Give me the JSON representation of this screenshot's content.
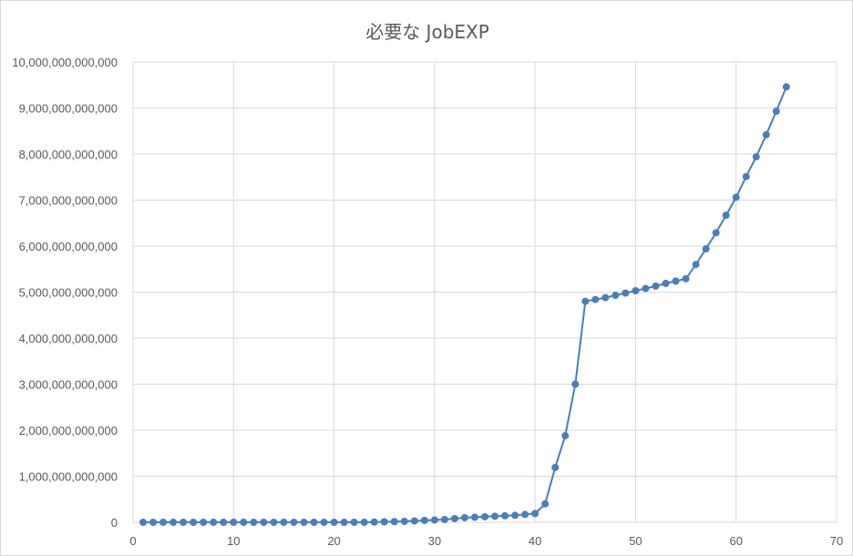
{
  "chart_data": {
    "type": "line",
    "title": "必要な JobEXP",
    "xlabel": "",
    "ylabel": "",
    "xlim": [
      0,
      70
    ],
    "ylim": [
      0,
      10000000000000
    ],
    "x_ticks": [
      0,
      10,
      20,
      30,
      40,
      50,
      60,
      70
    ],
    "y_ticks": [
      0,
      1000000000000,
      2000000000000,
      3000000000000,
      4000000000000,
      5000000000000,
      6000000000000,
      7000000000000,
      8000000000000,
      9000000000000,
      10000000000000
    ],
    "y_tick_labels": [
      "0",
      "1,000,000,000,000",
      "2,000,000,000,000",
      "3,000,000,000,000",
      "4,000,000,000,000",
      "5,000,000,000,000",
      "6,000,000,000,000",
      "7,000,000,000,000",
      "8,000,000,000,000",
      "9,000,000,000,000",
      "10,000,000,000,000"
    ],
    "grid": true,
    "legend": "none",
    "series": [
      {
        "color": "#4a7ebb",
        "x": [
          1,
          2,
          3,
          4,
          5,
          6,
          7,
          8,
          9,
          10,
          11,
          12,
          13,
          14,
          15,
          16,
          17,
          18,
          19,
          20,
          21,
          22,
          23,
          24,
          25,
          26,
          27,
          28,
          29,
          30,
          31,
          32,
          33,
          34,
          35,
          36,
          37,
          38,
          39,
          40,
          41,
          42,
          43,
          44,
          45,
          46,
          47,
          48,
          49,
          50,
          51,
          52,
          53,
          54,
          55,
          56,
          57,
          58,
          59,
          60,
          61,
          62,
          63,
          64,
          65
        ],
        "y": [
          0,
          0,
          0,
          0,
          0,
          0,
          0,
          0,
          0,
          0,
          0,
          0,
          0,
          0,
          0,
          0,
          0,
          0,
          0,
          0,
          0,
          0,
          0,
          5000000000,
          10000000000,
          15000000000,
          20000000000,
          30000000000,
          40000000000,
          50000000000,
          60000000000,
          80000000000,
          100000000000,
          110000000000,
          120000000000,
          130000000000,
          140000000000,
          150000000000,
          170000000000,
          190000000000,
          400000000000,
          1190000000000,
          1880000000000,
          3000000000000,
          4800000000000,
          4840000000000,
          4880000000000,
          4930000000000,
          4980000000000,
          5030000000000,
          5080000000000,
          5130000000000,
          5190000000000,
          5240000000000,
          5290000000000,
          5600000000000,
          5940000000000,
          6290000000000,
          6670000000000,
          7060000000000,
          7510000000000,
          7940000000000,
          8420000000000,
          8930000000000,
          9460000000000
        ]
      }
    ]
  }
}
